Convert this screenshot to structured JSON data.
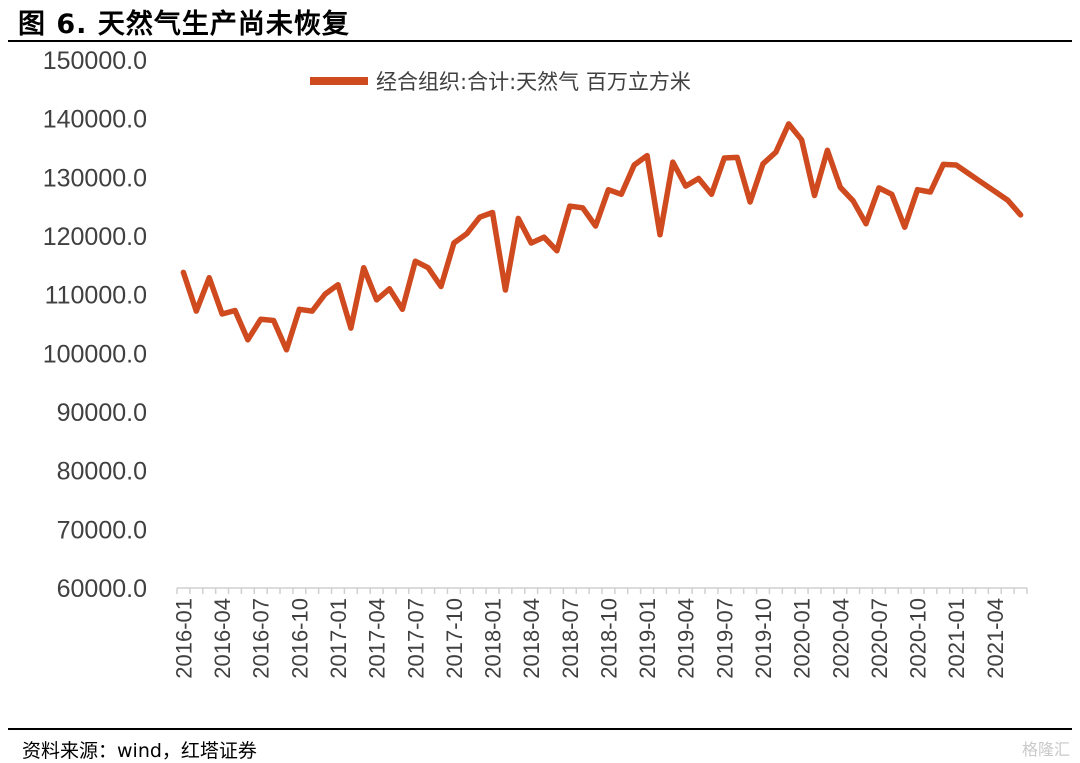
{
  "header": {
    "title": "图 6. 天然气生产尚未恢复"
  },
  "footer": {
    "source": "资料来源：wind，红塔证券",
    "watermark": "格隆汇"
  },
  "chart_data": {
    "type": "line",
    "title": "图 6. 天然气生产尚未恢复",
    "xlabel": "",
    "ylabel": "",
    "ylim": [
      60000,
      150000
    ],
    "y_ticks": [
      "150000.0",
      "140000.0",
      "130000.0",
      "120000.0",
      "110000.0",
      "100000.0",
      "90000.0",
      "80000.0",
      "70000.0",
      "60000.0"
    ],
    "x_tick_labels": [
      "2016-01",
      "2016-04",
      "2016-07",
      "2016-10",
      "2017-01",
      "2017-04",
      "2017-07",
      "2017-10",
      "2018-01",
      "2018-04",
      "2018-07",
      "2018-10",
      "2019-01",
      "2019-04",
      "2019-07",
      "2019-10",
      "2020-01",
      "2020-04",
      "2020-07",
      "2020-10",
      "2021-01",
      "2021-04"
    ],
    "grid": false,
    "legend": "top",
    "series_color": "#CF4A1F",
    "x": [
      "2016-01",
      "2016-02",
      "2016-03",
      "2016-04",
      "2016-05",
      "2016-06",
      "2016-07",
      "2016-08",
      "2016-09",
      "2016-10",
      "2016-11",
      "2016-12",
      "2017-01",
      "2017-02",
      "2017-03",
      "2017-04",
      "2017-05",
      "2017-06",
      "2017-07",
      "2017-08",
      "2017-09",
      "2017-10",
      "2017-11",
      "2017-12",
      "2018-01",
      "2018-02",
      "2018-03",
      "2018-04",
      "2018-05",
      "2018-06",
      "2018-07",
      "2018-08",
      "2018-09",
      "2018-10",
      "2018-11",
      "2018-12",
      "2019-01",
      "2019-02",
      "2019-03",
      "2019-04",
      "2019-05",
      "2019-06",
      "2019-07",
      "2019-08",
      "2019-09",
      "2019-10",
      "2019-11",
      "2019-12",
      "2020-01",
      "2020-02",
      "2020-03",
      "2020-04",
      "2020-05",
      "2020-06",
      "2020-07",
      "2020-08",
      "2020-09",
      "2020-10",
      "2020-11",
      "2020-12",
      "2021-01",
      "2021-02",
      "2021-03",
      "2021-04",
      "2021-05",
      "2021-06"
    ],
    "series": [
      {
        "name": "经合组织:合计:天然气 百万立方米",
        "values": [
          113800,
          107200,
          112900,
          106700,
          107300,
          102300,
          105800,
          105600,
          100600,
          107500,
          107200,
          110100,
          111700,
          104300,
          114600,
          109100,
          111000,
          107500,
          115700,
          114600,
          111400,
          118800,
          120400,
          123200,
          124000,
          110800,
          123000,
          118800,
          119800,
          117500,
          125100,
          124800,
          121700,
          127900,
          127100,
          132100,
          133700,
          120200,
          132600,
          128500,
          129800,
          127100,
          133300,
          133400,
          125800,
          132300,
          134300,
          139100,
          136400,
          126900,
          134600,
          128300,
          126000,
          122100,
          128200,
          127100,
          121500,
          127900,
          127500,
          132200,
          132100,
          130600,
          129100,
          127600,
          126100,
          123600
        ]
      }
    ]
  }
}
